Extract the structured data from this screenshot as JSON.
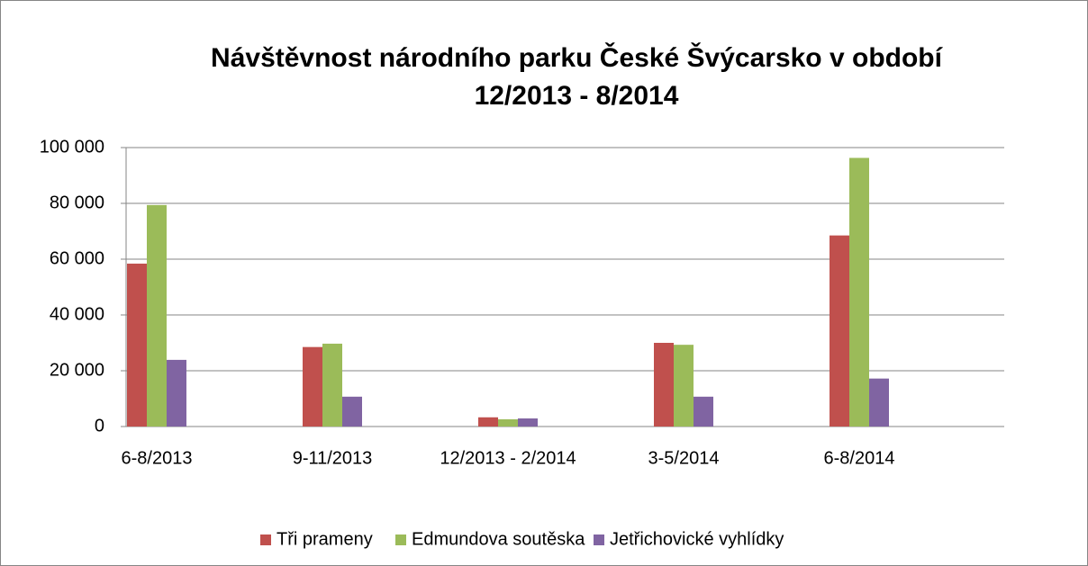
{
  "chart_data": {
    "type": "bar",
    "title": [
      "Návštěvnost národního parku České Švýcarsko v období",
      "12/2013 - 8/2014"
    ],
    "categories": [
      "6-8/2013",
      "9-11/2013",
      "12/2013 - 2/2014",
      "3-5/2014",
      "6-8/2014"
    ],
    "series": [
      {
        "name": "Tři prameny",
        "color": "#c0504d",
        "values": [
          58400,
          28500,
          3300,
          30000,
          68500
        ]
      },
      {
        "name": "Edmundova soutěska",
        "color": "#9bbb59",
        "values": [
          79400,
          29700,
          2600,
          29300,
          96300
        ]
      },
      {
        "name": "Jetřichovické vyhlídky",
        "color": "#8064a2",
        "values": [
          23900,
          10700,
          2900,
          10700,
          17200
        ]
      }
    ],
    "ylim": [
      0,
      100000
    ],
    "yticks": [
      0,
      {
        "value": 20000,
        "label": "20 000"
      },
      {
        "value": 40000,
        "label": "40 000"
      },
      {
        "value": 60000,
        "label": "60 000"
      },
      {
        "value": 80000,
        "label": "80 000"
      },
      {
        "value": 100000,
        "label": "100 000"
      }
    ],
    "grid": true,
    "legend": "bottom"
  }
}
